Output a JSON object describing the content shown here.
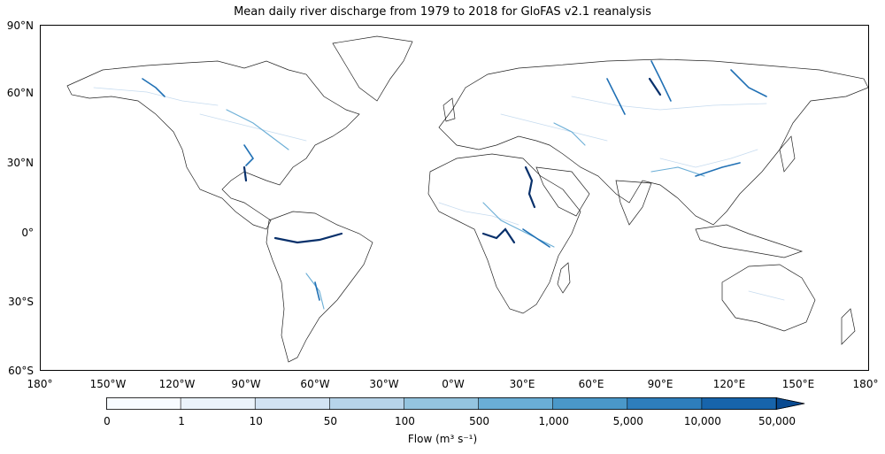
{
  "map": {
    "title": "Mean daily river discharge from 1979 to 2018 for GloFAS v2.1 reanalysis",
    "latitude_labels": [
      "90°N",
      "60°N",
      "30°N",
      "0°",
      "30°S",
      "60°S"
    ],
    "longitude_labels": [
      "180°",
      "150°W",
      "120°W",
      "90°W",
      "60°W",
      "30°W",
      "0°W",
      "30°E",
      "60°E",
      "90°E",
      "120°E",
      "150°E",
      "180°"
    ],
    "land_outline_color": "#222222",
    "river_colors": [
      "#c6dbef",
      "#6baed6",
      "#2171b5",
      "#08306b"
    ]
  },
  "colorbar": {
    "ticks": [
      "0",
      "1",
      "10",
      "50",
      "100",
      "500",
      "1,000",
      "5,000",
      "10,000",
      "50,000"
    ],
    "colors": [
      "#f7fbff",
      "#ebf3fb",
      "#d2e3f3",
      "#b7d4ea",
      "#94c4df",
      "#6aaed6",
      "#4a98c9",
      "#2e7ebc",
      "#1764ab",
      "#084a91"
    ],
    "label": "Flow (m³ s⁻¹)",
    "extend": "max"
  }
}
